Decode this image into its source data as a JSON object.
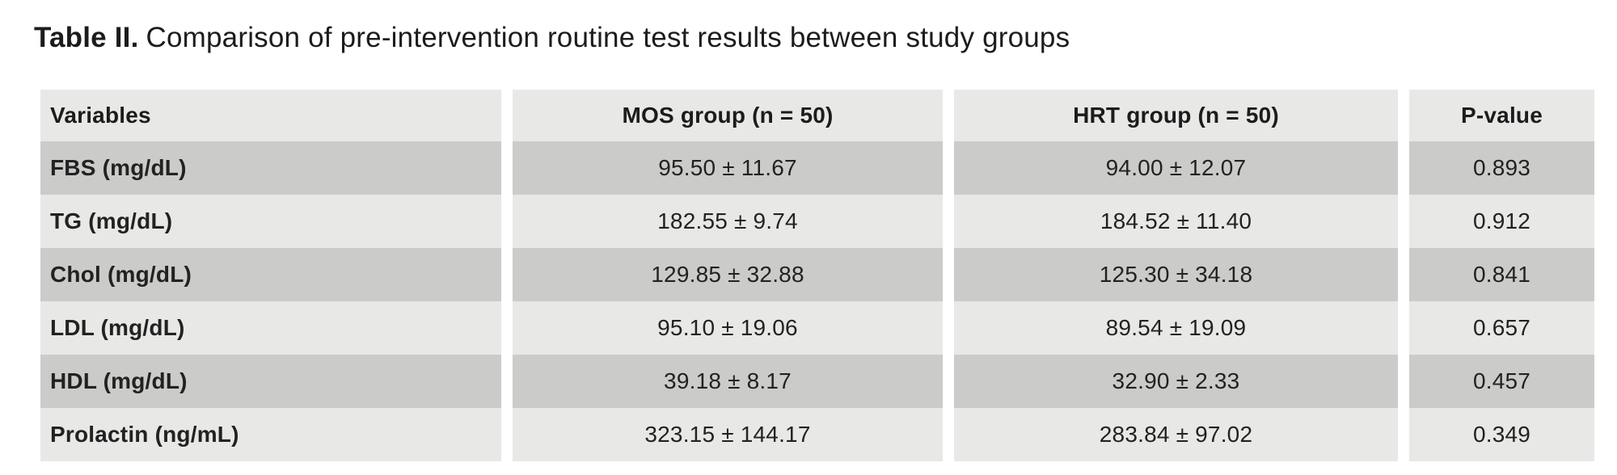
{
  "title": {
    "prefix": "Table II.",
    "rest": "Comparison of pre-intervention routine test results between study groups"
  },
  "table": {
    "headers": {
      "variables": "Variables",
      "mos": "MOS group (n = 50)",
      "hrt": "HRT group (n = 50)",
      "p": "P-value"
    },
    "rows": [
      {
        "variable": "FBS (mg/dL)",
        "mos": "95.50 ± 11.67",
        "hrt": "94.00 ± 12.07",
        "p": "0.893"
      },
      {
        "variable": "TG (mg/dL)",
        "mos": "182.55 ± 9.74",
        "hrt": "184.52 ± 11.40",
        "p": "0.912"
      },
      {
        "variable": "Chol (mg/dL)",
        "mos": "129.85 ± 32.88",
        "hrt": "125.30 ± 34.18",
        "p": "0.841"
      },
      {
        "variable": "LDL (mg/dL)",
        "mos": "95.10 ± 19.06",
        "hrt": "89.54 ± 19.09",
        "p": "0.657"
      },
      {
        "variable": "HDL (mg/dL)",
        "mos": "39.18 ± 8.17",
        "hrt": "32.90 ± 2.33",
        "p": "0.457"
      },
      {
        "variable": "Prolactin (ng/mL)",
        "mos": "323.15 ± 144.17",
        "hrt": "283.84 ± 97.02",
        "p": "0.349"
      }
    ]
  },
  "colors": {
    "background": "#ffffff",
    "row_light": "#e8e8e7",
    "row_dark": "#cbcbca",
    "text": "#222222"
  },
  "chart_data": {
    "type": "table",
    "title": "Table II. Comparison of pre-intervention routine test results between study groups",
    "columns": [
      "Variables",
      "MOS group (n = 50)",
      "HRT group (n = 50)",
      "P-value"
    ],
    "rows": [
      [
        "FBS (mg/dL)",
        "95.50 ± 11.67",
        "94.00 ± 12.07",
        "0.893"
      ],
      [
        "TG (mg/dL)",
        "182.55 ± 9.74",
        "184.52 ± 11.40",
        "0.912"
      ],
      [
        "Chol (mg/dL)",
        "129.85 ± 32.88",
        "125.30 ± 34.18",
        "0.841"
      ],
      [
        "LDL (mg/dL)",
        "95.10 ± 19.06",
        "89.54 ± 19.09",
        "0.657"
      ],
      [
        "HDL (mg/dL)",
        "39.18 ± 8.17",
        "32.90 ± 2.33",
        "0.457"
      ],
      [
        "Prolactin (ng/mL)",
        "323.15 ± 144.17",
        "283.84 ± 97.02",
        "0.349"
      ]
    ]
  }
}
